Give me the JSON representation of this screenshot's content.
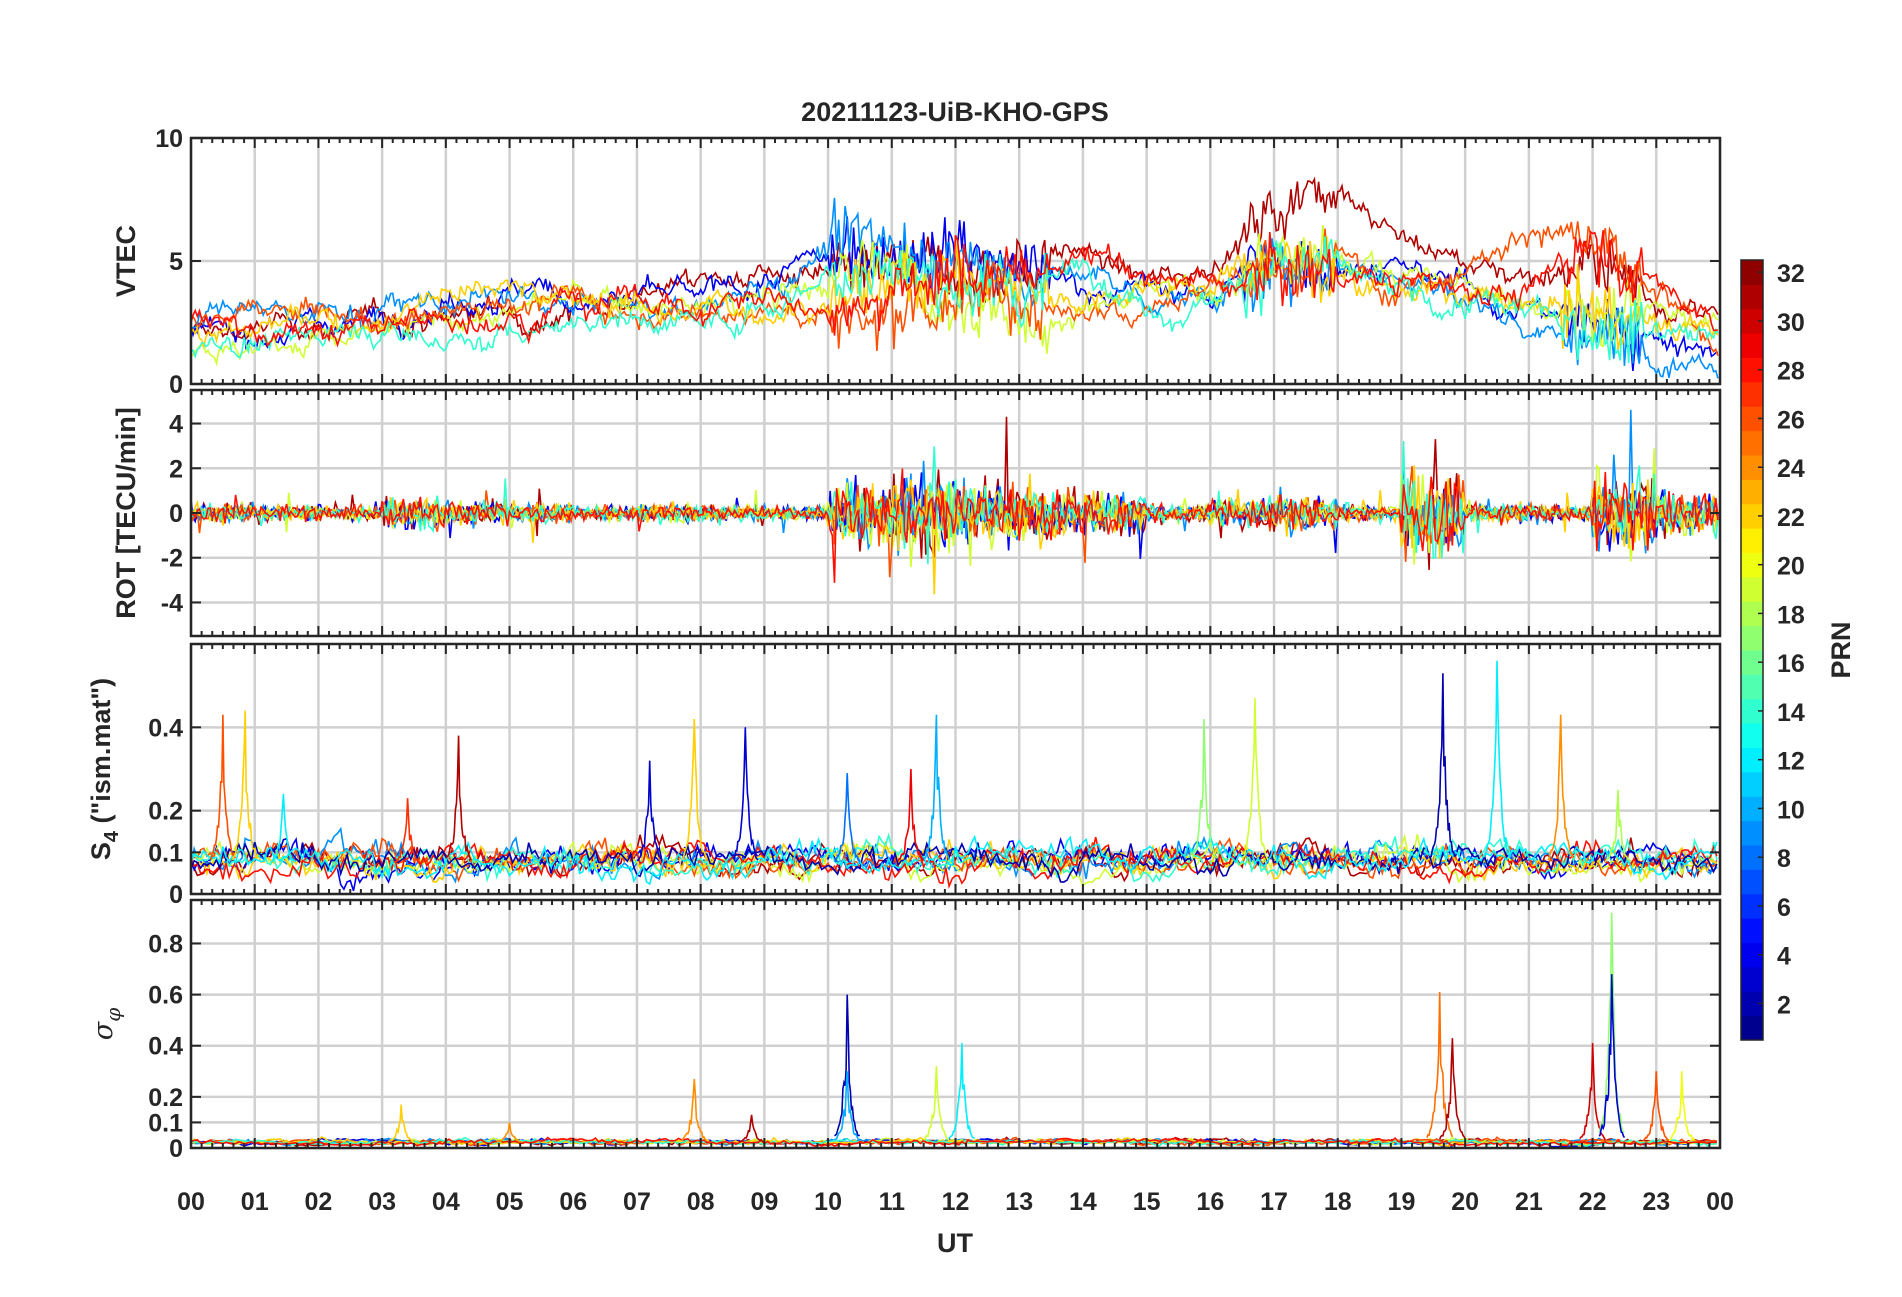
{
  "chart_data": {
    "type": "line",
    "title": "20211123-UiB-KHO-GPS",
    "xlabel": "UT",
    "xlim": [
      0,
      24
    ],
    "x_tick_labels": [
      "00",
      "01",
      "02",
      "03",
      "04",
      "05",
      "06",
      "07",
      "08",
      "09",
      "10",
      "11",
      "12",
      "13",
      "14",
      "15",
      "16",
      "17",
      "18",
      "19",
      "20",
      "21",
      "22",
      "23",
      "00"
    ],
    "grid": true,
    "colorbar": {
      "label": "PRN",
      "range": [
        1,
        32
      ],
      "colormap": "jet",
      "tick_labels": [
        "2",
        "4",
        "6",
        "8",
        "10",
        "12",
        "14",
        "16",
        "18",
        "20",
        "22",
        "24",
        "26",
        "28",
        "30",
        "32"
      ],
      "placement": "right"
    },
    "panels": [
      {
        "id": "vtec",
        "ylabel": "VTEC",
        "ylim": [
          0,
          10
        ],
        "y_ticks": [
          0,
          5,
          10
        ],
        "y_tick_labels": [
          "0",
          "5",
          "10"
        ],
        "note": "hourly approximate values per PRN, hours 0..24",
        "series": [
          {
            "prn": 31,
            "values": [
              2,
              2.2,
              2.4,
              2.5,
              2.8,
              3,
              3.2,
              3.8,
              4.2,
              4.5,
              4,
              4.5,
              4.5,
              4.8,
              5.5,
              4,
              5,
              7,
              8.5,
              6,
              5,
              4.5,
              5,
              3.5,
              2.5
            ]
          },
          {
            "prn": 4,
            "values": [
              2,
              2.2,
              2.5,
              2.8,
              3.5,
              3.8,
              3.5,
              3.5,
              3.5,
              4,
              5,
              5.5,
              5.5,
              4.5,
              4,
              3.8,
              3.5,
              5,
              5,
              4.5,
              4,
              3,
              2.5,
              2,
              1.5
            ]
          },
          {
            "prn": 9,
            "values": [
              2.5,
              2.8,
              3,
              3,
              3.2,
              3.5,
              3.2,
              3,
              3,
              4,
              5.5,
              6,
              5,
              4.5,
              4.5,
              3.5,
              3.5,
              4.5,
              5,
              4.5,
              3.5,
              2.5,
              2,
              1.5,
              1.2
            ]
          },
          {
            "prn": 19,
            "values": [
              1.2,
              1.5,
              1.8,
              2,
              2.5,
              3,
              3.5,
              3.2,
              3,
              3.5,
              4,
              5,
              3,
              2.5,
              3,
              3.5,
              4,
              5,
              5.5,
              4.5,
              4,
              3,
              3,
              3.5,
              2
            ]
          },
          {
            "prn": 26,
            "values": [
              2.5,
              2.8,
              2.8,
              2.5,
              3,
              3.5,
              3.5,
              3,
              3,
              3,
              2.5,
              3,
              3.5,
              3.5,
              3,
              3.5,
              4,
              4.5,
              5,
              4,
              5,
              6.5,
              5.5,
              3.5,
              1.5
            ]
          },
          {
            "prn": 22,
            "values": [
              2,
              2.3,
              2.5,
              2.8,
              4,
              4,
              3.5,
              3.2,
              3,
              3,
              3.5,
              4,
              4.5,
              4,
              3.5,
              4,
              4.5,
              5,
              4.5,
              4,
              3.5,
              3,
              3,
              2.5,
              2
            ]
          },
          {
            "prn": 14,
            "values": [
              1.5,
              1.8,
              2,
              2.5,
              1.8,
              2,
              2.5,
              2.8,
              2.5,
              3,
              4.5,
              5,
              4,
              3.5,
              5,
              3,
              3.5,
              5,
              4.5,
              3.5,
              3,
              3,
              2.5,
              2.5,
              2
            ]
          },
          {
            "prn": 28,
            "values": [
              2.5,
              2.5,
              2,
              2.2,
              2.8,
              2.8,
              3.5,
              3.5,
              3,
              3.5,
              3,
              4,
              4.5,
              4.5,
              5,
              4.5,
              4,
              4.5,
              4.5,
              4,
              4,
              3.5,
              6,
              4,
              2.5
            ]
          }
        ]
      },
      {
        "id": "rot",
        "ylabel": "ROT [TECU/min]",
        "ylim": [
          -5.5,
          5.5
        ],
        "y_ticks": [
          -4,
          -2,
          0,
          2,
          4
        ],
        "y_tick_labels": [
          "-4",
          "-2",
          "0",
          "2",
          "4"
        ],
        "note": "hourly max |ROT| envelope, hours 0..23",
        "prns": [
          31,
          4,
          9,
          19,
          26,
          22,
          14,
          28
        ],
        "hourly_amplitude": [
          1.2,
          1,
          0.8,
          1.8,
          1.5,
          1.2,
          0.8,
          1,
          1,
          0.8,
          3.5,
          4.5,
          4.2,
          3,
          2.5,
          1,
          2,
          2,
          1,
          5,
          1.2,
          1,
          4.5,
          2.5
        ]
      },
      {
        "id": "s4",
        "ylabel_main": "S",
        "ylabel_sub": "4",
        "ylabel_rest": " (\"ism.mat\")",
        "ylim": [
          0,
          0.6
        ],
        "y_ticks": [
          0,
          0.1,
          0.2,
          0.4
        ],
        "y_tick_labels": [
          "0",
          "0.1",
          "0.2",
          "0.4"
        ],
        "baseline": 0.07,
        "prns": [
          31,
          4,
          9,
          19,
          26,
          22,
          14,
          28,
          2,
          12
        ],
        "peaks": [
          {
            "prn": 26,
            "t": 0.5,
            "v": 0.43
          },
          {
            "prn": 22,
            "t": 0.85,
            "v": 0.44
          },
          {
            "prn": 12,
            "t": 1.45,
            "v": 0.24
          },
          {
            "prn": 27,
            "t": 3.4,
            "v": 0.23
          },
          {
            "prn": 31,
            "t": 4.2,
            "v": 0.38
          },
          {
            "prn": 3,
            "t": 7.2,
            "v": 0.32
          },
          {
            "prn": 22,
            "t": 7.9,
            "v": 0.42
          },
          {
            "prn": 3,
            "t": 8.7,
            "v": 0.4
          },
          {
            "prn": 8,
            "t": 10.3,
            "v": 0.29
          },
          {
            "prn": 29,
            "t": 11.3,
            "v": 0.3
          },
          {
            "prn": 10,
            "t": 11.7,
            "v": 0.43
          },
          {
            "prn": 17,
            "t": 15.9,
            "v": 0.42
          },
          {
            "prn": 19,
            "t": 16.7,
            "v": 0.47
          },
          {
            "prn": 2,
            "t": 19.65,
            "v": 0.53
          },
          {
            "prn": 12,
            "t": 20.5,
            "v": 0.56
          },
          {
            "prn": 24,
            "t": 21.5,
            "v": 0.43
          },
          {
            "prn": 18,
            "t": 22.4,
            "v": 0.25
          }
        ]
      },
      {
        "id": "sigma-phi",
        "ylabel_main": "σ",
        "ylabel_sub": "φ",
        "ylim": [
          0,
          0.97
        ],
        "y_ticks": [
          0,
          0.1,
          0.2,
          0.4,
          0.6,
          0.8
        ],
        "y_tick_labels": [
          "0",
          "0.1",
          "0.2",
          "0.4",
          "0.6",
          "0.8"
        ],
        "baseline": 0.02,
        "prns": [
          31,
          4,
          9,
          19,
          26,
          22,
          14,
          28
        ],
        "peaks": [
          {
            "prn": 22,
            "t": 3.3,
            "v": 0.17
          },
          {
            "prn": 24,
            "t": 5.0,
            "v": 0.1
          },
          {
            "prn": 24,
            "t": 7.9,
            "v": 0.27
          },
          {
            "prn": 31,
            "t": 8.8,
            "v": 0.13
          },
          {
            "prn": 2,
            "t": 10.3,
            "v": 0.6
          },
          {
            "prn": 10,
            "t": 10.3,
            "v": 0.3
          },
          {
            "prn": 19,
            "t": 11.7,
            "v": 0.32
          },
          {
            "prn": 12,
            "t": 12.1,
            "v": 0.41
          },
          {
            "prn": 25,
            "t": 19.6,
            "v": 0.61
          },
          {
            "prn": 31,
            "t": 19.8,
            "v": 0.43
          },
          {
            "prn": 30,
            "t": 22.0,
            "v": 0.41
          },
          {
            "prn": 17,
            "t": 22.3,
            "v": 0.92
          },
          {
            "prn": 3,
            "t": 22.3,
            "v": 0.68
          },
          {
            "prn": 26,
            "t": 23.0,
            "v": 0.3
          },
          {
            "prn": 20,
            "t": 23.4,
            "v": 0.3
          }
        ]
      }
    ]
  }
}
